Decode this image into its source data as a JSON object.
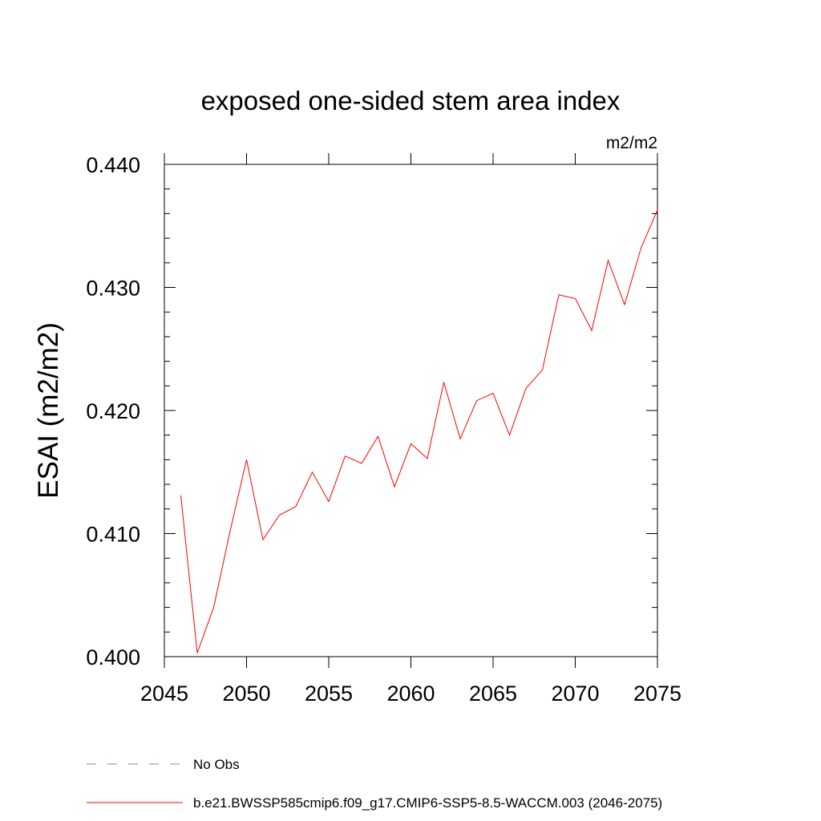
{
  "chart_data": {
    "type": "line",
    "title": "exposed one-sided stem area index",
    "units": "m2/m2",
    "xlabel": "",
    "ylabel": "ESAI  (m2/m2)",
    "xlim": [
      2045,
      2075
    ],
    "ylim": [
      0.4,
      0.44
    ],
    "x_ticks": [
      2045,
      2050,
      2055,
      2060,
      2065,
      2070,
      2075
    ],
    "x_tick_labels": [
      "2045",
      "2050",
      "2055",
      "2060",
      "2065",
      "2070",
      "2075"
    ],
    "y_ticks": [
      0.4,
      0.41,
      0.42,
      0.43,
      0.44
    ],
    "y_tick_labels": [
      "0.400",
      "0.410",
      "0.420",
      "0.430",
      "0.440"
    ],
    "grid": false,
    "legend_position": "bottom",
    "series": [
      {
        "name": "b.e21.BWSSP585cmip6.f09_g17.CMIP6-SSP5-8.5-WACCM.003 (2046-2075)",
        "color": "#ff0000",
        "style": "solid",
        "x": [
          2046,
          2047,
          2048,
          2049,
          2050,
          2051,
          2052,
          2053,
          2054,
          2055,
          2056,
          2057,
          2058,
          2059,
          2060,
          2061,
          2062,
          2063,
          2064,
          2065,
          2066,
          2067,
          2068,
          2069,
          2070,
          2071,
          2072,
          2073,
          2074,
          2075
        ],
        "values": [
          0.4131,
          0.4003,
          0.404,
          0.4102,
          0.416,
          0.4095,
          0.4115,
          0.4122,
          0.415,
          0.4126,
          0.4163,
          0.4157,
          0.4179,
          0.4138,
          0.4173,
          0.4161,
          0.4223,
          0.4177,
          0.4208,
          0.4214,
          0.418,
          0.4218,
          0.4233,
          0.4294,
          0.4291,
          0.4265,
          0.4322,
          0.4286,
          0.4332,
          0.4363
        ]
      }
    ],
    "legend": [
      {
        "label": "No Obs",
        "color": "#8080c0",
        "style": "dashed"
      },
      {
        "label": "b.e21.BWSSP585cmip6.f09_g17.CMIP6-SSP5-8.5-WACCM.003 (2046-2075)",
        "color": "#ff0000",
        "style": "solid"
      }
    ]
  }
}
